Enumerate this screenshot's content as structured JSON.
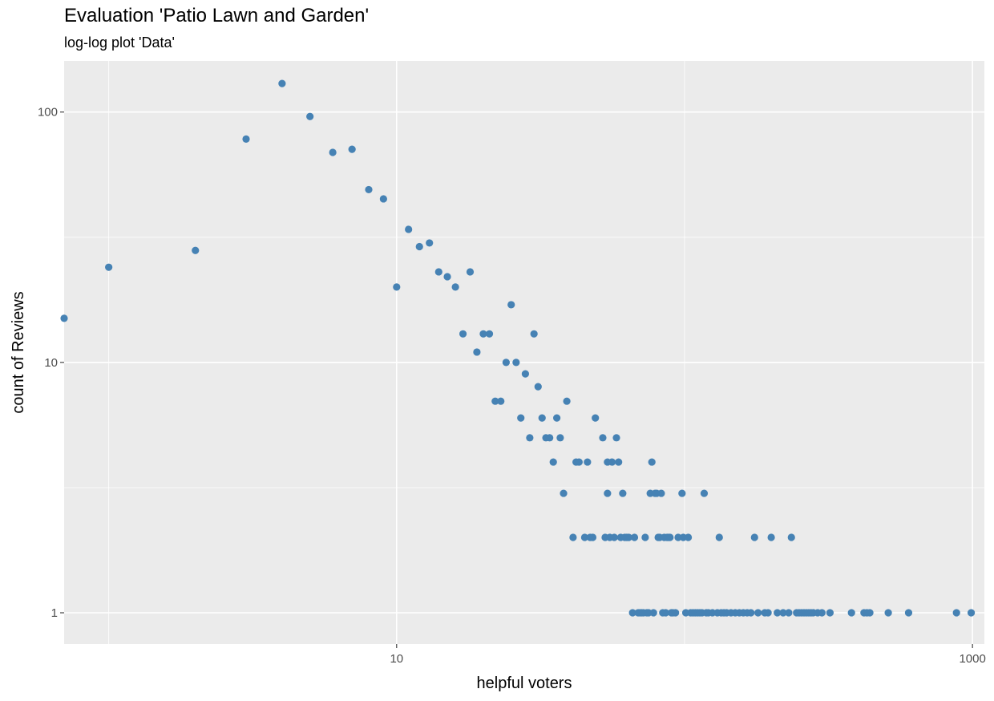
{
  "chart_data": {
    "type": "scatter",
    "title": "Evaluation 'Patio Lawn and Garden'",
    "subtitle": "log-log plot 'Data'",
    "xlabel": "helpful voters",
    "ylabel": "count of Reviews",
    "x_scale": "log10",
    "y_scale": "log10",
    "xlim": [
      0.7,
      1100
    ],
    "ylim": [
      0.75,
      160
    ],
    "x_ticks": [
      {
        "value": 10,
        "label": "10"
      },
      {
        "value": 1000,
        "label": "1000"
      }
    ],
    "x_minor_ticks": [
      1,
      100
    ],
    "y_ticks": [
      {
        "value": 1,
        "label": "1"
      },
      {
        "value": 10,
        "label": "10"
      },
      {
        "value": 100,
        "label": "100"
      }
    ],
    "y_minor_ticks": [
      3.16,
      31.6
    ],
    "grid": true,
    "colors": {
      "panel": "#ebebeb",
      "grid": "#ffffff",
      "point": "#4682b4"
    },
    "points": [
      [
        0.7,
        15
      ],
      [
        1,
        24
      ],
      [
        2,
        28
      ],
      [
        3,
        78
      ],
      [
        4,
        130
      ],
      [
        5,
        96
      ],
      [
        6,
        69
      ],
      [
        7,
        71
      ],
      [
        8,
        49
      ],
      [
        9,
        45
      ],
      [
        10,
        20
      ],
      [
        11,
        34
      ],
      [
        12,
        29
      ],
      [
        13,
        30
      ],
      [
        14,
        23
      ],
      [
        15,
        22
      ],
      [
        16,
        20
      ],
      [
        17,
        13
      ],
      [
        18,
        23
      ],
      [
        19,
        11
      ],
      [
        20,
        13
      ],
      [
        21,
        13
      ],
      [
        22,
        7
      ],
      [
        23,
        7
      ],
      [
        24,
        10
      ],
      [
        25,
        17
      ],
      [
        26,
        10
      ],
      [
        27,
        6
      ],
      [
        28,
        9
      ],
      [
        29,
        5
      ],
      [
        30,
        13
      ],
      [
        31,
        8
      ],
      [
        32,
        6
      ],
      [
        33,
        5
      ],
      [
        34,
        5
      ],
      [
        35,
        4
      ],
      [
        36,
        6
      ],
      [
        37,
        5
      ],
      [
        38,
        3
      ],
      [
        39,
        7
      ],
      [
        41,
        2
      ],
      [
        42,
        4
      ],
      [
        43,
        4
      ],
      [
        45,
        2
      ],
      [
        46,
        4
      ],
      [
        47,
        2
      ],
      [
        48,
        2
      ],
      [
        49,
        6
      ],
      [
        52,
        5
      ],
      [
        53,
        2
      ],
      [
        54,
        4
      ],
      [
        54,
        3
      ],
      [
        55,
        2
      ],
      [
        56,
        4
      ],
      [
        57,
        2
      ],
      [
        58,
        5
      ],
      [
        59,
        4
      ],
      [
        60,
        2
      ],
      [
        61,
        3
      ],
      [
        62,
        2
      ],
      [
        63,
        2
      ],
      [
        64,
        2
      ],
      [
        66,
        1
      ],
      [
        67,
        2
      ],
      [
        69,
        1
      ],
      [
        70,
        1
      ],
      [
        71,
        1
      ],
      [
        72,
        1
      ],
      [
        73,
        2
      ],
      [
        74,
        1
      ],
      [
        75,
        1
      ],
      [
        76,
        3
      ],
      [
        77,
        4
      ],
      [
        78,
        1
      ],
      [
        79,
        3
      ],
      [
        80,
        3
      ],
      [
        81,
        2
      ],
      [
        82,
        2
      ],
      [
        83,
        3
      ],
      [
        84,
        1
      ],
      [
        85,
        2
      ],
      [
        86,
        1
      ],
      [
        87,
        2
      ],
      [
        88,
        2
      ],
      [
        89,
        2
      ],
      [
        90,
        1
      ],
      [
        91,
        1
      ],
      [
        93,
        1
      ],
      [
        95,
        2
      ],
      [
        98,
        3
      ],
      [
        99,
        2
      ],
      [
        101,
        1
      ],
      [
        103,
        2
      ],
      [
        105,
        1
      ],
      [
        107,
        1
      ],
      [
        109,
        1
      ],
      [
        111,
        1
      ],
      [
        113,
        1
      ],
      [
        115,
        1
      ],
      [
        117,
        3
      ],
      [
        119,
        1
      ],
      [
        121,
        1
      ],
      [
        125,
        1
      ],
      [
        130,
        1
      ],
      [
        132,
        2
      ],
      [
        134,
        1
      ],
      [
        137,
        1
      ],
      [
        140,
        1
      ],
      [
        145,
        1
      ],
      [
        150,
        1
      ],
      [
        155,
        1
      ],
      [
        160,
        1
      ],
      [
        165,
        1
      ],
      [
        170,
        1
      ],
      [
        175,
        2
      ],
      [
        180,
        1
      ],
      [
        190,
        1
      ],
      [
        195,
        1
      ],
      [
        200,
        2
      ],
      [
        210,
        1
      ],
      [
        220,
        1
      ],
      [
        230,
        1
      ],
      [
        235,
        2
      ],
      [
        245,
        1
      ],
      [
        250,
        1
      ],
      [
        255,
        1
      ],
      [
        260,
        1
      ],
      [
        265,
        1
      ],
      [
        270,
        1
      ],
      [
        275,
        1
      ],
      [
        280,
        1
      ],
      [
        290,
        1
      ],
      [
        300,
        1
      ],
      [
        320,
        1
      ],
      [
        380,
        1
      ],
      [
        420,
        1
      ],
      [
        430,
        1
      ],
      [
        440,
        1
      ],
      [
        510,
        1
      ],
      [
        600,
        1
      ],
      [
        880,
        1
      ],
      [
        990,
        1
      ]
    ]
  }
}
